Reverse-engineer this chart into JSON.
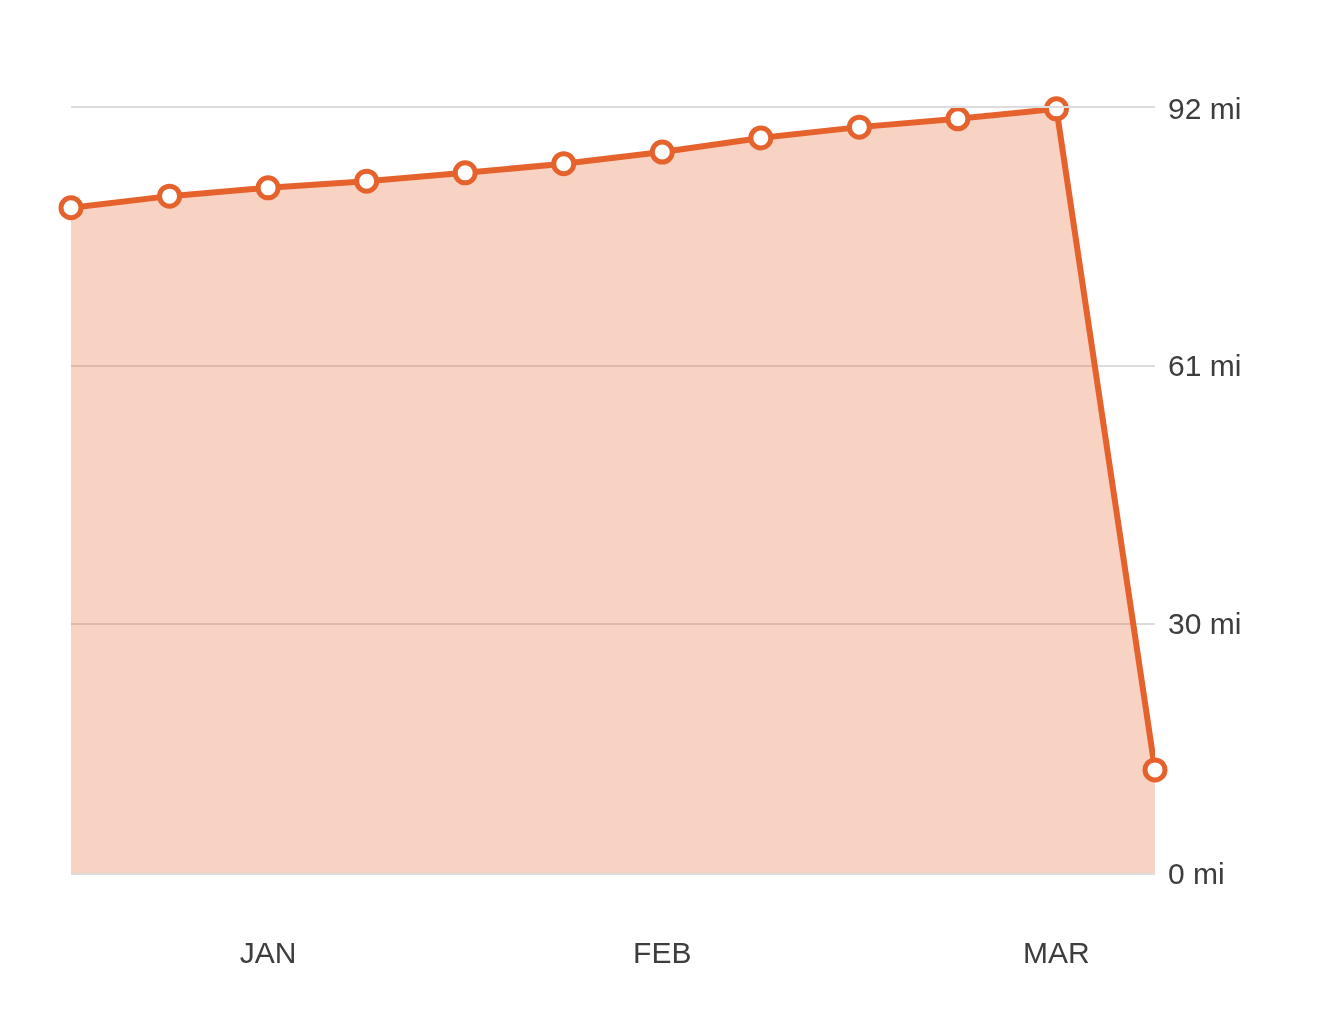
{
  "chart_data": {
    "type": "area",
    "categories": [
      null,
      null,
      "JAN",
      null,
      null,
      null,
      "FEB",
      null,
      null,
      null,
      "MAR",
      null
    ],
    "ylim": [
      0,
      92
    ],
    "yticks": [
      {
        "value": 0,
        "label": "0 mi"
      },
      {
        "value": 30,
        "label": "30 mi"
      },
      {
        "value": 61,
        "label": "61 mi"
      },
      {
        "value": 92,
        "label": "92 mi"
      }
    ],
    "series": [
      {
        "color": "#e5622c",
        "values": [
          80,
          81.4,
          82.4,
          83.2,
          84.2,
          85.3,
          86.7,
          88.4,
          89.7,
          90.7,
          91.9,
          12.4
        ]
      }
    ],
    "grid": "y",
    "marker": "circle",
    "line_style": "solid"
  }
}
